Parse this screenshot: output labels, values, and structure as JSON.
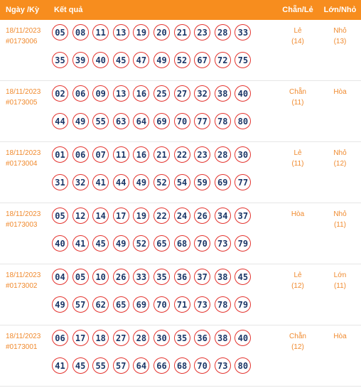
{
  "header": {
    "date_col": "Ngày /Kỳ",
    "result_col": "Kết quả",
    "even_odd_col": "Chẵn/Lẻ",
    "big_small_col": "Lớn/Nhỏ"
  },
  "draws": [
    {
      "date": "18/11/2023",
      "draw_id": "#0173006",
      "line1": [
        "05",
        "08",
        "11",
        "13",
        "19",
        "20",
        "21",
        "23",
        "28",
        "33"
      ],
      "line2": [
        "35",
        "39",
        "40",
        "45",
        "47",
        "49",
        "52",
        "67",
        "72",
        "75"
      ],
      "even_odd": "Lẻ",
      "even_odd_count": "(14)",
      "big_small": "Nhỏ",
      "big_small_count": "(13)"
    },
    {
      "date": "18/11/2023",
      "draw_id": "#0173005",
      "line1": [
        "02",
        "06",
        "09",
        "13",
        "16",
        "25",
        "27",
        "32",
        "38",
        "40"
      ],
      "line2": [
        "44",
        "49",
        "55",
        "63",
        "64",
        "69",
        "70",
        "77",
        "78",
        "80"
      ],
      "even_odd": "Chẵn",
      "even_odd_count": "(11)",
      "big_small": "Hòa",
      "big_small_count": ""
    },
    {
      "date": "18/11/2023",
      "draw_id": "#0173004",
      "line1": [
        "01",
        "06",
        "07",
        "11",
        "16",
        "21",
        "22",
        "23",
        "28",
        "30"
      ],
      "line2": [
        "31",
        "32",
        "41",
        "44",
        "49",
        "52",
        "54",
        "59",
        "69",
        "77"
      ],
      "even_odd": "Lẻ",
      "even_odd_count": "(11)",
      "big_small": "Nhỏ",
      "big_small_count": "(12)"
    },
    {
      "date": "18/11/2023",
      "draw_id": "#0173003",
      "line1": [
        "05",
        "12",
        "14",
        "17",
        "19",
        "22",
        "24",
        "26",
        "34",
        "37"
      ],
      "line2": [
        "40",
        "41",
        "45",
        "49",
        "52",
        "65",
        "68",
        "70",
        "73",
        "79"
      ],
      "even_odd": "Hòa",
      "even_odd_count": "",
      "big_small": "Nhỏ",
      "big_small_count": "(11)"
    },
    {
      "date": "18/11/2023",
      "draw_id": "#0173002",
      "line1": [
        "04",
        "05",
        "10",
        "26",
        "33",
        "35",
        "36",
        "37",
        "38",
        "45"
      ],
      "line2": [
        "49",
        "57",
        "62",
        "65",
        "69",
        "70",
        "71",
        "73",
        "78",
        "79"
      ],
      "even_odd": "Lẻ",
      "even_odd_count": "(12)",
      "big_small": "Lớn",
      "big_small_count": "(11)"
    },
    {
      "date": "18/11/2023",
      "draw_id": "#0173001",
      "line1": [
        "06",
        "17",
        "18",
        "27",
        "28",
        "30",
        "35",
        "36",
        "38",
        "40"
      ],
      "line2": [
        "41",
        "45",
        "55",
        "57",
        "64",
        "66",
        "68",
        "70",
        "73",
        "80"
      ],
      "even_odd": "Chẵn",
      "even_odd_count": "(12)",
      "big_small": "Hòa",
      "big_small_count": ""
    }
  ],
  "colors": {
    "header_bg": "#f78d1e",
    "accent_text": "#f08a2e",
    "ball_border": "#e3342f",
    "ball_text": "#1a3566"
  }
}
